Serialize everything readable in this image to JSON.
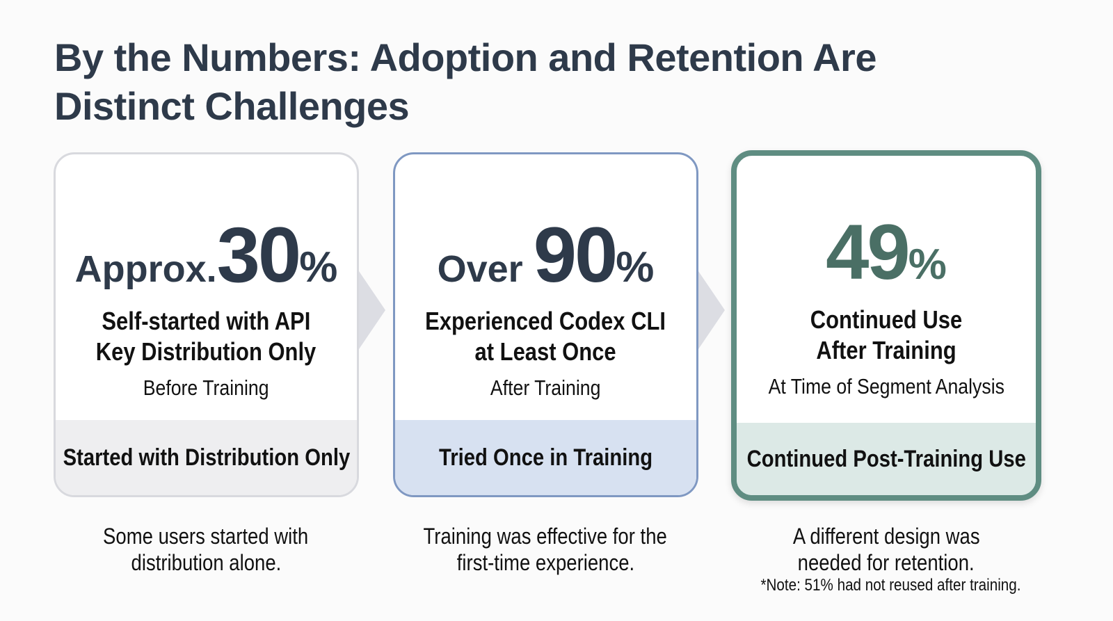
{
  "title": {
    "line1": "By the Numbers: Adoption and Retention Are",
    "line2": "Distinct Challenges"
  },
  "colors": {
    "title": "#2e3a4a",
    "card1_border": "#d8d9de",
    "card2_border": "#7f98c2",
    "card3_border": "#5f8d82",
    "card3_number": "#4a6f65"
  },
  "cards": [
    {
      "prefix": "Approx.",
      "number": "30",
      "percent": "%",
      "label_line1": "Self-started with API",
      "label_line2": "Key Distribution Only",
      "subtitle": "Before Training",
      "band": "Started with Distribution Only",
      "note_line1": "Some users started with",
      "note_line2": "distribution alone."
    },
    {
      "prefix": "Over ",
      "number": "90",
      "percent": "%",
      "label_line1": "Experienced Codex CLI",
      "label_line2": "at Least Once",
      "subtitle": "After Training",
      "band": "Tried Once in Training",
      "note_line1": "Training was effective for the",
      "note_line2": "first-time experience."
    },
    {
      "prefix": "",
      "number": "49",
      "percent": "%",
      "label_line1": "Continued Use",
      "label_line2": "After Training",
      "subtitle": "At Time of Segment Analysis",
      "band": "Continued Post-Training Use",
      "note_line1": "A different design was",
      "note_line2": "needed for retention."
    }
  ],
  "footnote": "*Note: 51% had not reused after training."
}
